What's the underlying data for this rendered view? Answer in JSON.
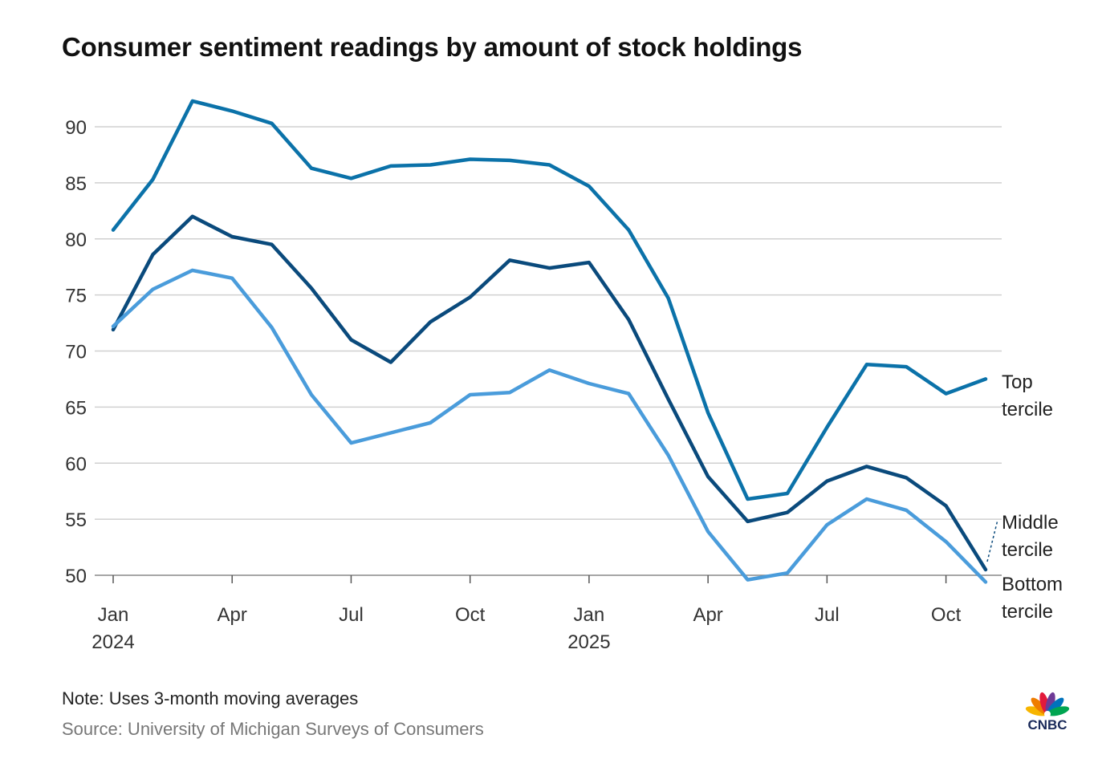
{
  "title": "Consumer sentiment readings by amount of stock holdings",
  "note": "Note: Uses 3-month moving averages",
  "source": "Source: University of Michigan Surveys of Consumers",
  "logo_text": "CNBC",
  "chart_data": {
    "type": "line",
    "title": "Consumer sentiment readings by amount of stock holdings",
    "xlabel": "",
    "ylabel": "",
    "ylim": [
      50,
      90
    ],
    "yticks": [
      50,
      55,
      60,
      65,
      70,
      75,
      80,
      85,
      90
    ],
    "grid": true,
    "x": [
      "2024-01",
      "2024-02",
      "2024-03",
      "2024-04",
      "2024-05",
      "2024-06",
      "2024-07",
      "2024-08",
      "2024-09",
      "2024-10",
      "2024-11",
      "2024-12",
      "2025-01",
      "2025-02",
      "2025-03",
      "2025-04",
      "2025-05",
      "2025-06",
      "2025-07",
      "2025-08",
      "2025-09",
      "2025-10",
      "2025-11"
    ],
    "xticks": [
      {
        "index": 0,
        "label": "Jan",
        "year": "2024"
      },
      {
        "index": 3,
        "label": "Apr",
        "year": ""
      },
      {
        "index": 6,
        "label": "Jul",
        "year": ""
      },
      {
        "index": 9,
        "label": "Oct",
        "year": ""
      },
      {
        "index": 12,
        "label": "Jan",
        "year": "2025"
      },
      {
        "index": 15,
        "label": "Apr",
        "year": ""
      },
      {
        "index": 18,
        "label": "Jul",
        "year": ""
      },
      {
        "index": 21,
        "label": "Oct",
        "year": ""
      }
    ],
    "series": [
      {
        "name": "Top tercile",
        "label_lines": [
          "Top",
          "tercile"
        ],
        "color": "#0b72a9",
        "values": [
          80.8,
          85.3,
          92.3,
          91.4,
          90.3,
          86.3,
          85.4,
          86.5,
          86.6,
          87.1,
          87.0,
          86.6,
          84.7,
          80.8,
          74.7,
          64.5,
          56.8,
          57.3,
          63.2,
          68.8,
          68.6,
          66.2,
          67.5
        ]
      },
      {
        "name": "Middle tercile",
        "label_lines": [
          "Middle",
          "tercile"
        ],
        "color": "#0a4a7c",
        "values": [
          71.9,
          78.6,
          82.0,
          80.2,
          79.5,
          75.6,
          71.0,
          69.0,
          72.6,
          74.8,
          78.1,
          77.4,
          77.9,
          72.8,
          65.7,
          58.8,
          54.8,
          55.6,
          58.4,
          59.7,
          58.7,
          56.2,
          50.5
        ]
      },
      {
        "name": "Bottom tercile",
        "label_lines": [
          "Bottom",
          "tercile"
        ],
        "color": "#4a9cdb",
        "values": [
          72.2,
          75.5,
          77.2,
          76.5,
          72.1,
          66.1,
          61.8,
          62.7,
          63.6,
          66.1,
          66.3,
          68.3,
          67.1,
          66.2,
          60.7,
          53.9,
          49.6,
          50.2,
          54.5,
          56.8,
          55.8,
          53.0,
          49.4
        ]
      }
    ]
  }
}
